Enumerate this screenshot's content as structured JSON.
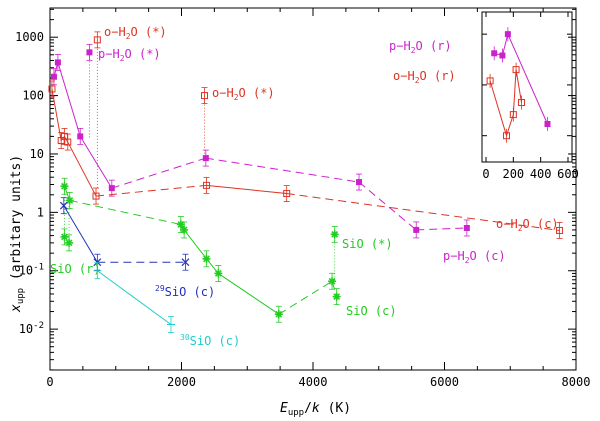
{
  "chart_data": {
    "type": "scatter",
    "xlabel": "E_upp/k (K)",
    "ylabel": "x_upp (arbitary units)",
    "xlim": [
      0,
      8000
    ],
    "ylim_log10": [
      -2.7,
      3.5
    ],
    "xticks": [
      "0",
      "2000",
      "4000",
      "6000",
      "8000"
    ],
    "yticks": [
      "10^-2",
      "10^-1",
      "1",
      "10",
      "100",
      "1000"
    ],
    "series": [
      {
        "name": "p-H2O (c)",
        "label": "p-H2O (c)",
        "color": "#cc22cc",
        "marker": "filled-square",
        "dash": "8,5",
        "points": [
          [
            60,
            210
          ],
          [
            120,
            370
          ],
          [
            460,
            20
          ],
          [
            940,
            2.6
          ],
          [
            2370,
            8.5
          ],
          [
            4700,
            3.3
          ],
          [
            5570,
            0.5
          ],
          [
            6340,
            0.54
          ]
        ]
      },
      {
        "name": "o-H2O (c)",
        "label": "o-H2O (c)",
        "color": "#dd3322",
        "marker": "open-square",
        "dash": "8,5",
        "points": [
          [
            30,
            130
          ],
          [
            170,
            17
          ],
          [
            220,
            20
          ],
          [
            270,
            16
          ],
          [
            700,
            1.9
          ],
          [
            2380,
            2.9
          ],
          [
            3600,
            2.1
          ],
          [
            7750,
            0.49
          ]
        ]
      },
      {
        "name": "SiO (c)",
        "label": "SiO (c)",
        "color": "#22cc22",
        "marker": "asterisk",
        "dash": "8,5",
        "points": [
          [
            220,
            2.8
          ],
          [
            300,
            1.6
          ],
          [
            1990,
            0.62
          ],
          [
            2040,
            0.5
          ],
          [
            2380,
            0.16
          ],
          [
            2560,
            0.09
          ],
          [
            3480,
            0.018
          ],
          [
            4290,
            0.066
          ],
          [
            4360,
            0.036
          ]
        ]
      },
      {
        "name": "29SiO (c)",
        "label": "29SiO (c)",
        "color": "#2233bb",
        "marker": "cross",
        "dash": "8,5",
        "points": [
          [
            210,
            1.3
          ],
          [
            720,
            0.14
          ],
          [
            2060,
            0.14
          ]
        ]
      },
      {
        "name": "30SiO (c)",
        "label": "30SiO (c)",
        "color": "#22cccc",
        "marker": "tick",
        "dash": "",
        "points": [
          [
            720,
            0.1
          ],
          [
            1840,
            0.012
          ]
        ]
      }
    ],
    "upper_estimates": [
      {
        "label": "o-H2O (*)",
        "color": "#dd3322",
        "marker": "open-square",
        "x": 720,
        "y": 900
      },
      {
        "label": "p-H2O (*)",
        "color": "#cc22cc",
        "marker": "filled-square",
        "x": 600,
        "y": 550
      },
      {
        "label": "o-H2O (*)",
        "color": "#dd3322",
        "marker": "open-square",
        "x": 2350,
        "y": 100
      },
      {
        "label": "SiO (*)",
        "color": "#22cc22",
        "marker": "asterisk",
        "x": 4330,
        "y": 0.42
      },
      {
        "label": "SiO (r)",
        "color": "#22cc22",
        "marker": "asterisk",
        "x": 220,
        "y": 0.38
      },
      {
        "label": "SiO (r)",
        "color": "#22cc22",
        "marker": "asterisk",
        "x": 290,
        "y": 0.3
      }
    ],
    "inset": {
      "xlim": [
        0,
        600
      ],
      "xticks": [
        "0",
        "200",
        "400",
        "600"
      ],
      "series": [
        {
          "label": "p-H2O (r)",
          "color": "#cc22cc",
          "marker": "filled-square",
          "points": [
            [
              60,
              420
            ],
            [
              120,
              380
            ],
            [
              160,
              1000
            ],
            [
              450,
              17
            ]
          ]
        },
        {
          "label": "o-H2O (r)",
          "color": "#dd3322",
          "marker": "open-square",
          "points": [
            [
              30,
              120
            ],
            [
              150,
              10
            ],
            [
              200,
              26
            ],
            [
              220,
              200
            ],
            [
              260,
              45
            ]
          ]
        }
      ]
    },
    "labels": {
      "o_h2o_c": "o-H2O (c)",
      "p_h2o_c": "p-H2O (c)",
      "o_h2o_star_top": "o-H2O (*)",
      "p_h2o_star": "p-H2O (*)",
      "o_h2o_star_mid": "o-H2O (*)",
      "sio_star": "SiO (*)",
      "sio_r": "SiO (r)",
      "sio_c": "SiO (c)",
      "sio29_c": "29SiO (c)",
      "sio30_c": "30SiO (c)",
      "inset_p_h2o_r": "p-H2O (r)",
      "inset_o_h2o_r": "o-H2O (r)"
    }
  }
}
